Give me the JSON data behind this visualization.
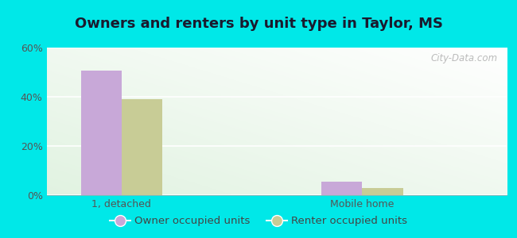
{
  "title": "Owners and renters by unit type in Taylor, MS",
  "categories": [
    "1, detached",
    "Mobile home"
  ],
  "owner_values": [
    50.5,
    5.5
  ],
  "renter_values": [
    39.0,
    3.0
  ],
  "owner_color": "#c8a8d8",
  "renter_color": "#c8cc96",
  "background_color": "#00e8e8",
  "ylim": [
    0,
    60
  ],
  "yticks": [
    0,
    20,
    40,
    60
  ],
  "ytick_labels": [
    "0%",
    "20%",
    "40%",
    "60%"
  ],
  "bar_width": 0.38,
  "legend_owner": "Owner occupied units",
  "legend_renter": "Renter occupied units",
  "title_fontsize": 13,
  "axis_label_fontsize": 9,
  "legend_fontsize": 9.5,
  "watermark": "City-Data.com"
}
